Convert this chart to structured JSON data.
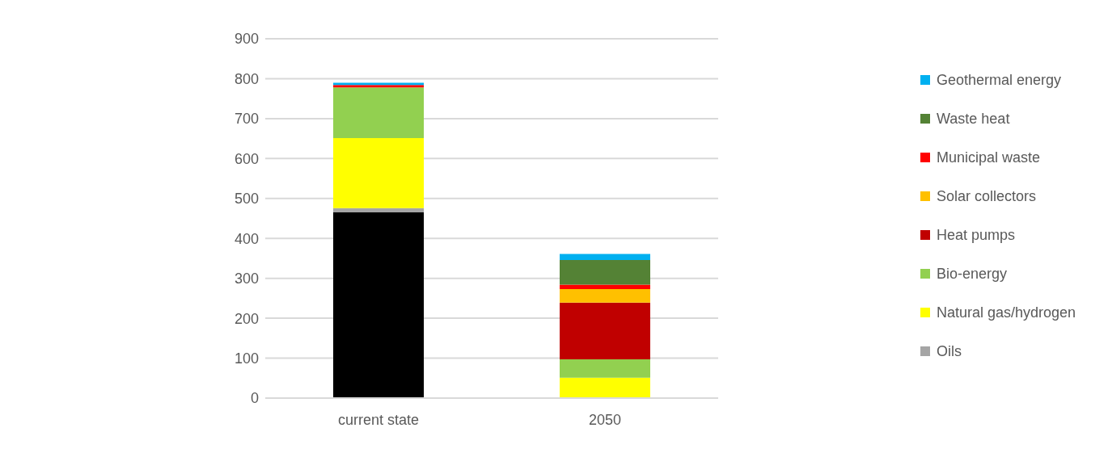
{
  "chart_data": {
    "type": "bar",
    "stacked": true,
    "categories": [
      "current state",
      "2050"
    ],
    "series": [
      {
        "color": "#000000",
        "values": [
          465,
          0
        ]
      },
      {
        "name": "Oils",
        "color": "#a5a5a5",
        "values": [
          11,
          0
        ]
      },
      {
        "name": "Natural gas/hydrogen",
        "color": "#ffff00",
        "values": [
          175,
          51
        ]
      },
      {
        "name": "Bio-energy",
        "color": "#92d050",
        "values": [
          127,
          46
        ]
      },
      {
        "name": "Heat pumps",
        "color": "#c00000",
        "values": [
          0,
          142
        ]
      },
      {
        "name": "Solar collectors",
        "color": "#ffc000",
        "values": [
          0,
          34
        ]
      },
      {
        "name": "Municipal waste",
        "color": "#ff0000",
        "values": [
          6,
          11
        ]
      },
      {
        "name": "Waste heat",
        "color": "#548235",
        "values": [
          0,
          62
        ]
      },
      {
        "name": "Geothermal energy",
        "color": "#00b0f0",
        "values": [
          6,
          15
        ]
      }
    ],
    "ylim": [
      0,
      900
    ],
    "yticks": [
      0,
      100,
      200,
      300,
      400,
      500,
      600,
      700,
      800,
      900
    ],
    "grid": "y",
    "legend": "right"
  }
}
